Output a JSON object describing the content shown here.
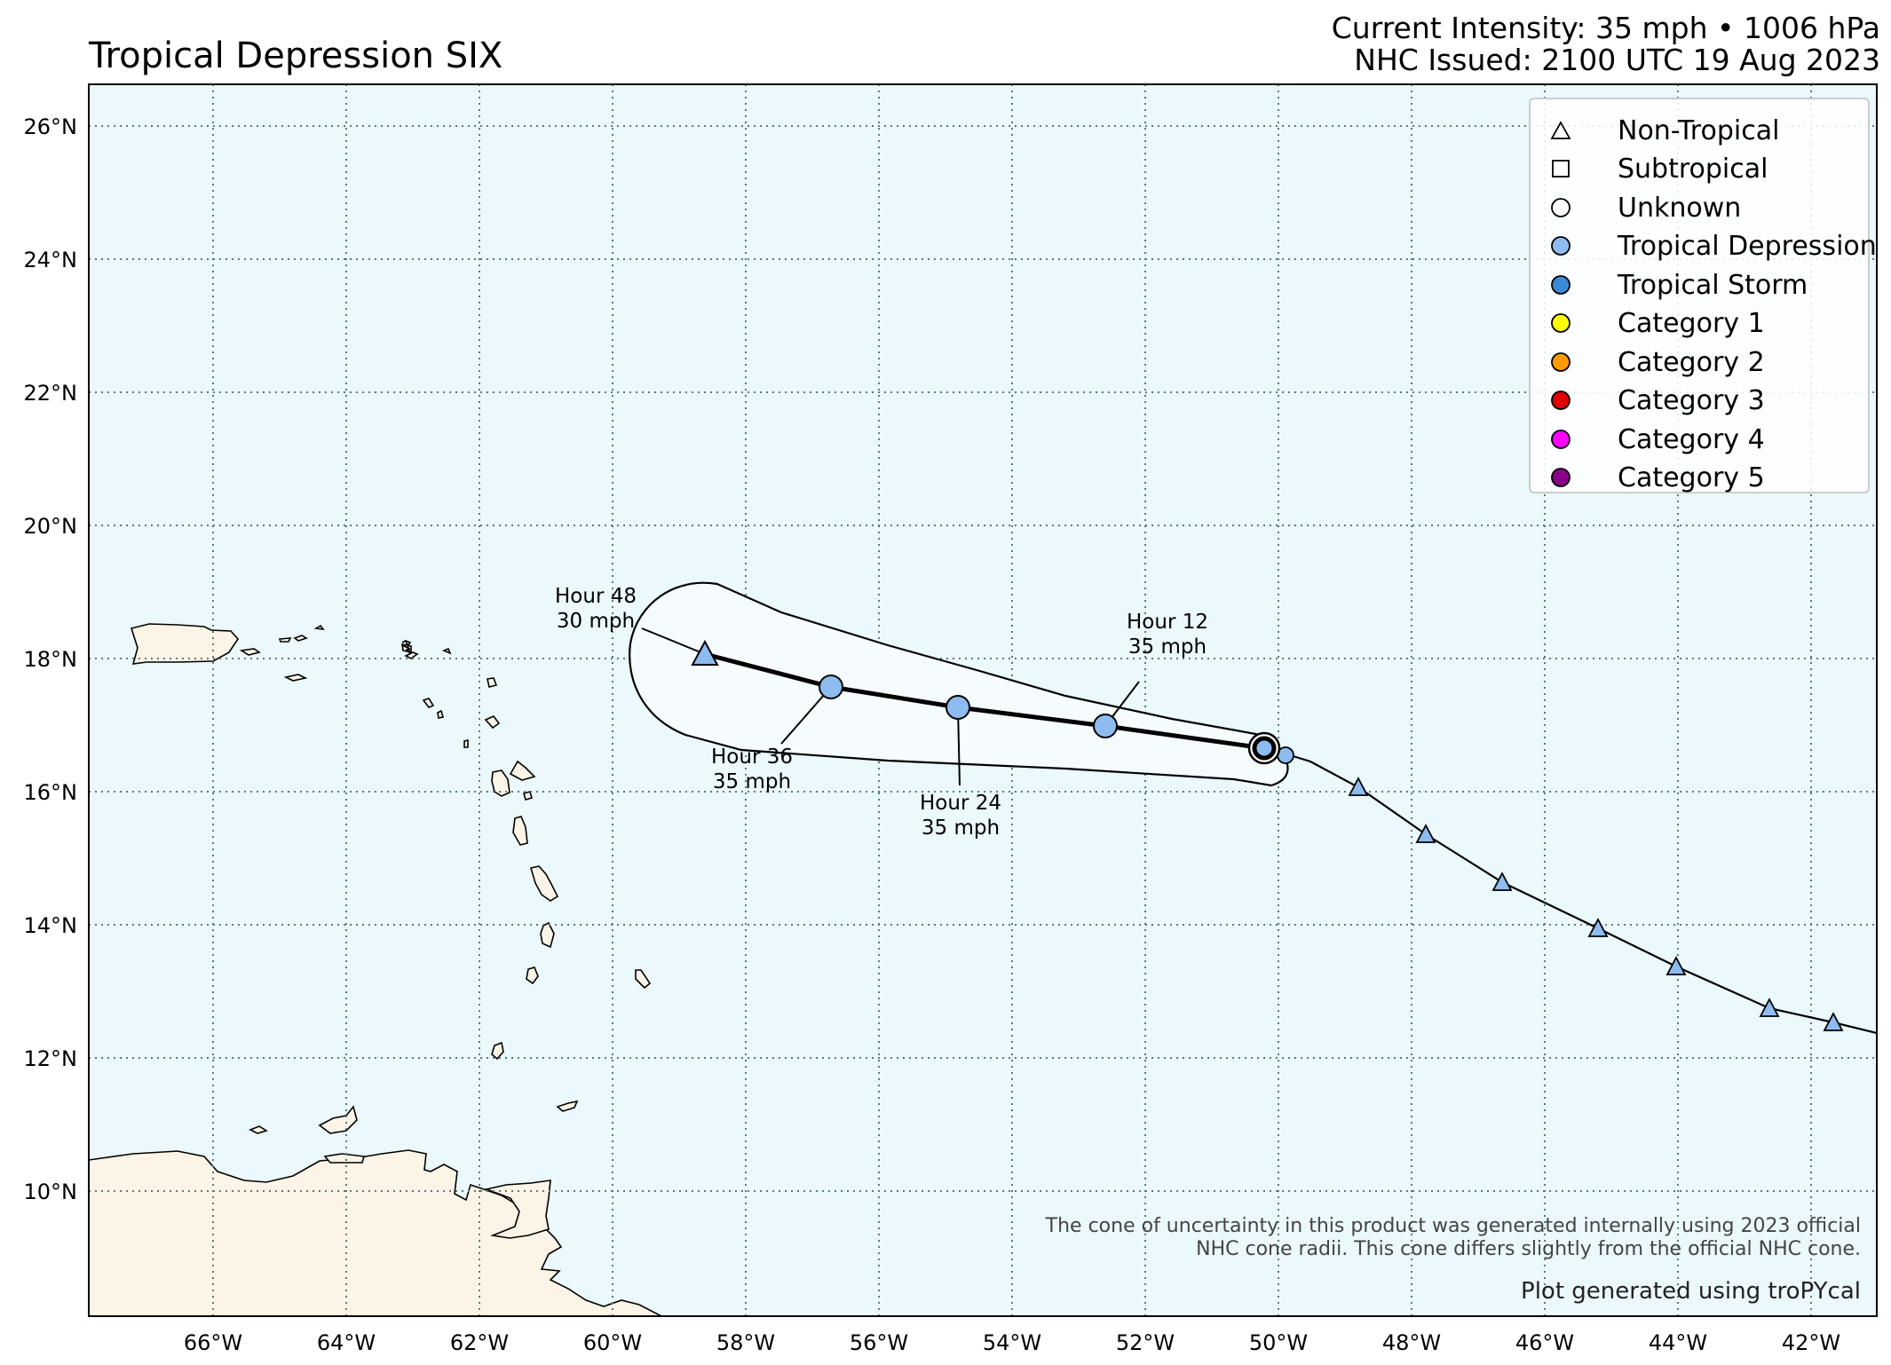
{
  "header": {
    "title": "Tropical Depression SIX",
    "current_intensity": "Current Intensity: 35 mph • 1006 hPa",
    "issued": "NHC Issued: 2100 UTC 19 Aug 2023"
  },
  "map": {
    "lon_ticks": [
      "66°W",
      "64°W",
      "62°W",
      "60°W",
      "58°W",
      "56°W",
      "54°W",
      "52°W",
      "50°W",
      "48°W",
      "46°W",
      "44°W",
      "42°W"
    ],
    "lat_ticks": [
      "26°N",
      "24°N",
      "22°N",
      "20°N",
      "18°N",
      "16°N",
      "14°N",
      "12°N",
      "10°N"
    ],
    "colors": {
      "ocean": "#ebf8fc",
      "land": "#fcf4e6",
      "cone": "#f6fcfe",
      "grid": "#5a7a7a"
    }
  },
  "legend": {
    "items": [
      {
        "label": "Non-Tropical",
        "shape": "triangle",
        "color": "#ffffff"
      },
      {
        "label": "Subtropical",
        "shape": "square",
        "color": "#ffffff"
      },
      {
        "label": "Unknown",
        "shape": "circle",
        "color": "#ffffff"
      },
      {
        "label": "Tropical Depression",
        "shape": "circle",
        "color": "#8ebcf0"
      },
      {
        "label": "Tropical Storm",
        "shape": "circle",
        "color": "#3a8ad6"
      },
      {
        "label": "Category 1",
        "shape": "circle",
        "color": "#ffff00"
      },
      {
        "label": "Category 2",
        "shape": "circle",
        "color": "#ff9a00"
      },
      {
        "label": "Category 3",
        "shape": "circle",
        "color": "#e10000"
      },
      {
        "label": "Category 4",
        "shape": "circle",
        "color": "#ff00ff"
      },
      {
        "label": "Category 5",
        "shape": "circle",
        "color": "#8b008b"
      }
    ]
  },
  "forecast_labels": [
    {
      "hour": "Hour 12",
      "wind": "35 mph"
    },
    {
      "hour": "Hour 24",
      "wind": "35 mph"
    },
    {
      "hour": "Hour 36",
      "wind": "35 mph"
    },
    {
      "hour": "Hour 48",
      "wind": "30 mph"
    }
  ],
  "footer": {
    "note_line1": "The cone of uncertainty in this product was generated internally using 2023 official",
    "note_line2": "NHC cone radii. This cone differs slightly from the official NHC cone.",
    "credit": "Plot generated using troPYcal"
  }
}
